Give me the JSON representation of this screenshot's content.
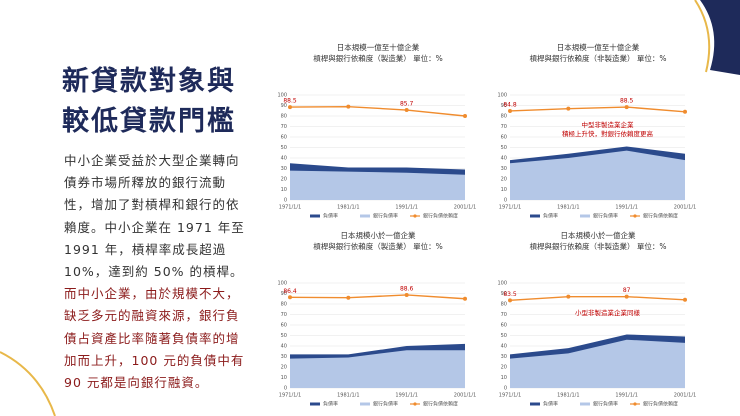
{
  "slide": {
    "title": [
      "新貸款對象與",
      "較低貸款門檻"
    ],
    "body": [
      "中小企業受益於大型企業轉向債券市場所釋放的銀行流動性，增加了對槓桿和銀行的依賴度。中小企業在 1971 年至 1991 年，槓桿率成長超過 10%，達到約 50% 的槓桿。",
      "而中小企業，由於規模不大，缺乏多元的融資來源，銀行負債占資產比率隨著負債率的增加而上升，100 元的負債中有 90 元都是向銀行融資。"
    ]
  },
  "chart_data": [
    {
      "type": "area-line",
      "title": [
        "日本規模一億至十億企業",
        "槓桿與銀行依賴度（製造業）  單位：%"
      ],
      "categories": [
        "1971/1/1",
        "1981/1/1",
        "1991/1/1",
        "2001/1/1"
      ],
      "ylim": [
        0,
        100
      ],
      "yticks": [
        0,
        10,
        20,
        30,
        40,
        50,
        60,
        70,
        80,
        90,
        100
      ],
      "grid": true,
      "series": [
        {
          "name": "負債率",
          "color": "#2b4a8c",
          "kind": "area",
          "values": [
            35,
            31,
            31,
            29
          ]
        },
        {
          "name": "銀行負債率",
          "color": "#b4c7e7",
          "kind": "area",
          "values": [
            28,
            27,
            26,
            24
          ]
        },
        {
          "name": "銀行負債依賴度",
          "color": "#f08c2e",
          "kind": "line",
          "values": [
            88.5,
            88.9,
            85.7,
            80
          ],
          "value_labels": [
            "88.5",
            null,
            "85.7",
            null
          ]
        }
      ]
    },
    {
      "type": "area-line",
      "title": [
        "日本規模一億至十億企業",
        "槓桿與銀行依賴度（非製造業）  單位：%"
      ],
      "categories": [
        "1971/1/1",
        "1981/1/1",
        "1991/1/1",
        "2001/1/1"
      ],
      "ylim": [
        0,
        100
      ],
      "yticks": [
        0,
        10,
        20,
        30,
        40,
        50,
        60,
        70,
        80,
        90,
        100
      ],
      "grid": true,
      "annotation": [
        "中型非製造業企業",
        "積極上升快，對銀行依賴度更高"
      ],
      "series": [
        {
          "name": "負債率",
          "color": "#2b4a8c",
          "kind": "area",
          "values": [
            38,
            44,
            51,
            44
          ]
        },
        {
          "name": "銀行負債率",
          "color": "#b4c7e7",
          "kind": "area",
          "values": [
            35,
            40,
            47,
            38
          ]
        },
        {
          "name": "銀行負債依賴度",
          "color": "#f08c2e",
          "kind": "line",
          "values": [
            84.8,
            87,
            88.5,
            84
          ],
          "value_labels": [
            "84.8",
            null,
            "88.5",
            null
          ]
        }
      ]
    },
    {
      "type": "area-line",
      "title": [
        "日本規模小於一億企業",
        "槓桿與銀行依賴度（製造業）  單位：%"
      ],
      "categories": [
        "1971/1/1",
        "1981/1/1",
        "1991/1/1",
        "2001/1/1"
      ],
      "ylim": [
        0,
        100
      ],
      "yticks": [
        0,
        10,
        20,
        30,
        40,
        50,
        60,
        70,
        80,
        90,
        100
      ],
      "grid": true,
      "series": [
        {
          "name": "負債率",
          "color": "#2b4a8c",
          "kind": "area",
          "values": [
            32,
            32,
            40,
            42
          ]
        },
        {
          "name": "銀行負債率",
          "color": "#b4c7e7",
          "kind": "area",
          "values": [
            28,
            29,
            36,
            36
          ]
        },
        {
          "name": "銀行負債依賴度",
          "color": "#f08c2e",
          "kind": "line",
          "values": [
            86.4,
            86,
            88.6,
            85
          ],
          "value_labels": [
            "86.4",
            null,
            "88.6",
            null
          ]
        }
      ]
    },
    {
      "type": "area-line",
      "title": [
        "日本規模小於一億企業",
        "槓桿與銀行依賴度（非製造業）  單位：%"
      ],
      "categories": [
        "1971/1/1",
        "1981/1/1",
        "1991/1/1",
        "2001/1/1"
      ],
      "ylim": [
        0,
        100
      ],
      "yticks": [
        0,
        10,
        20,
        30,
        40,
        50,
        60,
        70,
        80,
        90,
        100
      ],
      "grid": true,
      "annotation": [
        "小型非製造業企業同樣"
      ],
      "series": [
        {
          "name": "負債率",
          "color": "#2b4a8c",
          "kind": "area",
          "values": [
            32,
            38,
            51,
            49
          ]
        },
        {
          "name": "銀行負債率",
          "color": "#b4c7e7",
          "kind": "area",
          "values": [
            28,
            33,
            46,
            43
          ]
        },
        {
          "name": "銀行負債依賴度",
          "color": "#f08c2e",
          "kind": "line",
          "values": [
            83.5,
            87,
            87,
            84
          ],
          "value_labels": [
            "83.5",
            null,
            "87",
            null
          ]
        }
      ]
    }
  ]
}
